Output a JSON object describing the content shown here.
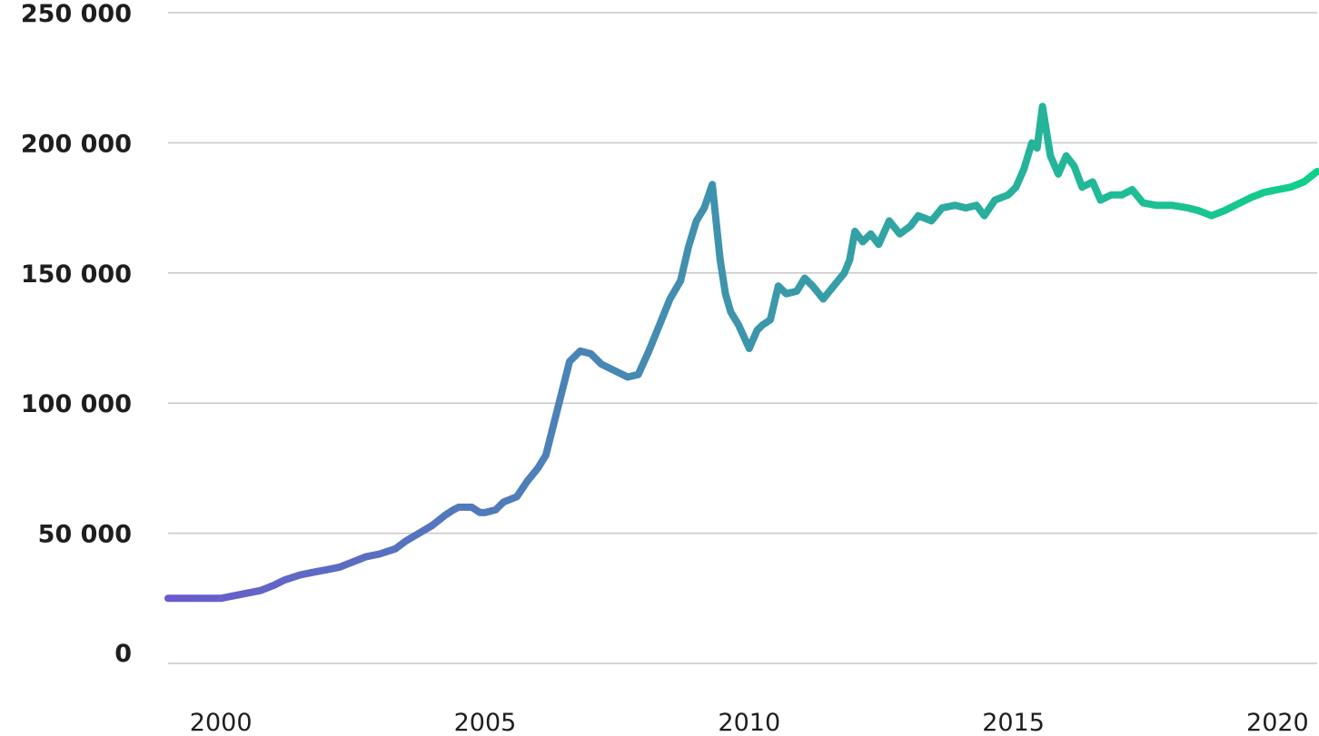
{
  "chart_data": {
    "type": "line",
    "title": "",
    "xlabel": "",
    "ylabel": "",
    "ylim": [
      0,
      250000
    ],
    "xlim": [
      1999.0,
      2020.75
    ],
    "grid": true,
    "y_ticks": [
      {
        "value": 250000,
        "label": "250 000"
      },
      {
        "value": 200000,
        "label": "200 000"
      },
      {
        "value": 150000,
        "label": "150 000"
      },
      {
        "value": 100000,
        "label": "100 000"
      },
      {
        "value": 50000,
        "label": "50 000"
      },
      {
        "value": 0,
        "label": "0"
      }
    ],
    "x_ticks": [
      {
        "value": 2000,
        "label": "2000"
      },
      {
        "value": 2005,
        "label": "2005"
      },
      {
        "value": 2010,
        "label": "2010"
      },
      {
        "value": 2015,
        "label": "2015"
      },
      {
        "value": 2020,
        "label": "2020"
      }
    ],
    "gradient": {
      "start": "#6a5acd",
      "end": "#0fd08a"
    },
    "series": [
      {
        "x": [
          1999.0,
          1999.7,
          2000.0,
          2000.25,
          2000.5,
          2000.75,
          2001.0,
          2001.2,
          2001.5,
          2001.75,
          2002.0,
          2002.25,
          2002.5,
          2002.75,
          2003.0,
          2003.3,
          2003.5,
          2003.75,
          2004.0,
          2004.25,
          2004.4,
          2004.5,
          2004.75,
          2004.9,
          2005.0,
          2005.2,
          2005.35,
          2005.6,
          2005.8,
          2006.0,
          2006.15,
          2006.4,
          2006.6,
          2006.8,
          2007.0,
          2007.2,
          2007.5,
          2007.7,
          2007.9,
          2008.1,
          2008.3,
          2008.5,
          2008.7,
          2008.85,
          2009.0,
          2009.15,
          2009.3,
          2009.45,
          2009.55,
          2009.65,
          2009.8,
          2010.0,
          2010.15,
          2010.25,
          2010.4,
          2010.55,
          2010.7,
          2010.9,
          2011.05,
          2011.2,
          2011.4,
          2011.6,
          2011.8,
          2011.9,
          2012.0,
          2012.15,
          2012.3,
          2012.45,
          2012.65,
          2012.85,
          2013.05,
          2013.2,
          2013.45,
          2013.65,
          2013.9,
          2014.1,
          2014.3,
          2014.45,
          2014.65,
          2014.9,
          2015.05,
          2015.2,
          2015.35,
          2015.45,
          2015.55,
          2015.7,
          2015.85,
          2016.0,
          2016.15,
          2016.3,
          2016.5,
          2016.65,
          2016.85,
          2017.05,
          2017.25,
          2017.45,
          2017.7,
          2018.0,
          2018.3,
          2018.5,
          2018.75,
          2019.0,
          2019.2,
          2019.5,
          2019.75,
          2020.0,
          2020.25,
          2020.5,
          2020.75
        ],
        "y": [
          25000,
          25000,
          25000,
          26000,
          27000,
          28000,
          30000,
          32000,
          34000,
          35000,
          36000,
          37000,
          39000,
          41000,
          42000,
          44000,
          47000,
          50000,
          53000,
          57000,
          59000,
          60000,
          60000,
          58000,
          58000,
          59000,
          62000,
          64000,
          70000,
          75000,
          80000,
          100000,
          116000,
          120000,
          119000,
          115000,
          112000,
          110000,
          111000,
          120000,
          130000,
          140000,
          147000,
          160000,
          170000,
          175000,
          184000,
          155000,
          142000,
          135000,
          130000,
          121000,
          128000,
          130000,
          132000,
          145000,
          142000,
          143000,
          148000,
          145000,
          140000,
          145000,
          150000,
          155000,
          166000,
          162000,
          165000,
          161000,
          170000,
          165000,
          168000,
          172000,
          170000,
          175000,
          176000,
          175000,
          176000,
          172000,
          178000,
          180000,
          183000,
          190000,
          200000,
          198000,
          214000,
          195000,
          188000,
          195000,
          191000,
          183000,
          185000,
          178000,
          180000,
          180000,
          182000,
          177000,
          176000,
          176000,
          175000,
          174000,
          172000,
          174000,
          176000,
          179000,
          181000,
          182000,
          183000,
          185000,
          189000
        ]
      }
    ]
  }
}
